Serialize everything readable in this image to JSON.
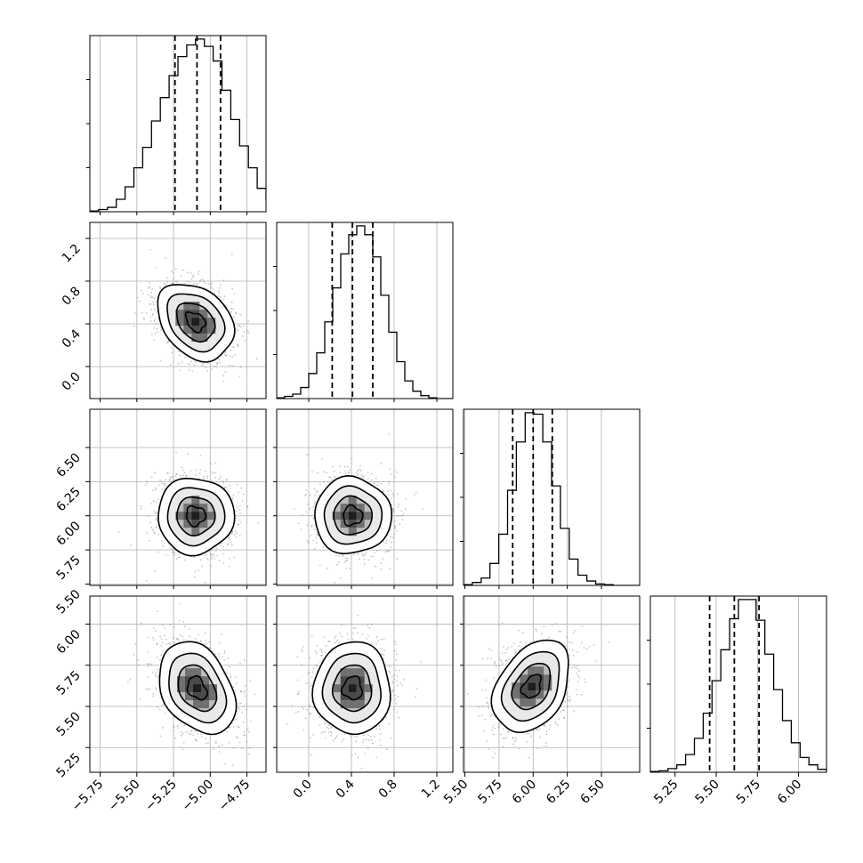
{
  "chart_data": {
    "type": "corner",
    "parameters": [
      {
        "range": [
          -5.82,
          -4.62
        ],
        "ticks": [
          -5.75,
          -5.5,
          -5.25,
          -5.0,
          -4.75
        ],
        "tick_labels": [
          "−5.75",
          "−5.50",
          "−5.25",
          "−5.00",
          "−4.75"
        ]
      },
      {
        "range": [
          -0.3,
          1.35
        ],
        "ticks": [
          0.0,
          0.4,
          0.8,
          1.2
        ],
        "tick_labels": [
          "0.0",
          "0.4",
          "0.8",
          "1.2"
        ]
      },
      {
        "range": [
          5.49,
          6.78
        ],
        "ticks": [
          5.5,
          5.75,
          6.0,
          6.25,
          6.5
        ],
        "tick_labels": [
          "5.50",
          "5.75",
          "6.00",
          "6.25",
          "6.50"
        ]
      },
      {
        "range": [
          5.1,
          6.17
        ],
        "ticks": [
          5.25,
          5.5,
          5.75,
          6.0
        ],
        "tick_labels": [
          "5.25",
          "5.50",
          "5.75",
          "6.00"
        ]
      }
    ],
    "histograms": [
      {
        "quantiles": [
          -5.24,
          -5.09,
          -4.93
        ],
        "edges_start": -5.82,
        "bin_width": 0.06,
        "counts": [
          1,
          3,
          6,
          17,
          34,
          60,
          88,
          124,
          156,
          186,
          212,
          228,
          236,
          226,
          206,
          166,
          126,
          90,
          60,
          32,
          16,
          6,
          2
        ]
      },
      {
        "quantiles": [
          0.22,
          0.41,
          0.6
        ],
        "edges_start": -0.3,
        "bin_width": 0.075,
        "counts": [
          1,
          3,
          6,
          15,
          34,
          62,
          104,
          150,
          196,
          222,
          234,
          222,
          192,
          140,
          90,
          50,
          24,
          10,
          4,
          1,
          0,
          0
        ]
      },
      {
        "quantiles": [
          5.85,
          6.0,
          6.14
        ],
        "edges_start": 5.49,
        "bin_width": 0.0645,
        "counts": [
          1,
          4,
          10,
          30,
          70,
          130,
          196,
          236,
          234,
          196,
          136,
          78,
          36,
          14,
          6,
          2,
          1,
          0,
          0,
          0
        ]
      },
      {
        "quantiles": [
          5.46,
          5.61,
          5.76
        ],
        "edges_start": 5.1,
        "bin_width": 0.0535,
        "counts": [
          1,
          2,
          5,
          10,
          24,
          46,
          80,
          124,
          166,
          208,
          234,
          234,
          206,
          160,
          112,
          70,
          40,
          20,
          10,
          4
        ]
      }
    ],
    "panels": [
      {
        "row": 1,
        "col": 0,
        "center": [
          -5.1,
          0.42
        ],
        "sigma": [
          0.13,
          0.18
        ],
        "rho": -0.3
      },
      {
        "row": 2,
        "col": 0,
        "center": [
          -5.1,
          6.0
        ],
        "sigma": [
          0.13,
          0.14
        ],
        "rho": 0.0
      },
      {
        "row": 2,
        "col": 1,
        "center": [
          0.41,
          6.0
        ],
        "sigma": [
          0.18,
          0.14
        ],
        "rho": 0.0
      },
      {
        "row": 3,
        "col": 0,
        "center": [
          -5.09,
          5.61
        ],
        "sigma": [
          0.13,
          0.14
        ],
        "rho": -0.32
      },
      {
        "row": 3,
        "col": 1,
        "center": [
          0.41,
          5.61
        ],
        "sigma": [
          0.18,
          0.14
        ],
        "rho": 0.0
      },
      {
        "row": 3,
        "col": 2,
        "center": [
          5.99,
          5.62
        ],
        "sigma": [
          0.14,
          0.14
        ],
        "rho": 0.35
      }
    ],
    "contour_levels_sigma": [
      0.5,
      1.0,
      1.5,
      2.0
    ],
    "grid": true
  }
}
